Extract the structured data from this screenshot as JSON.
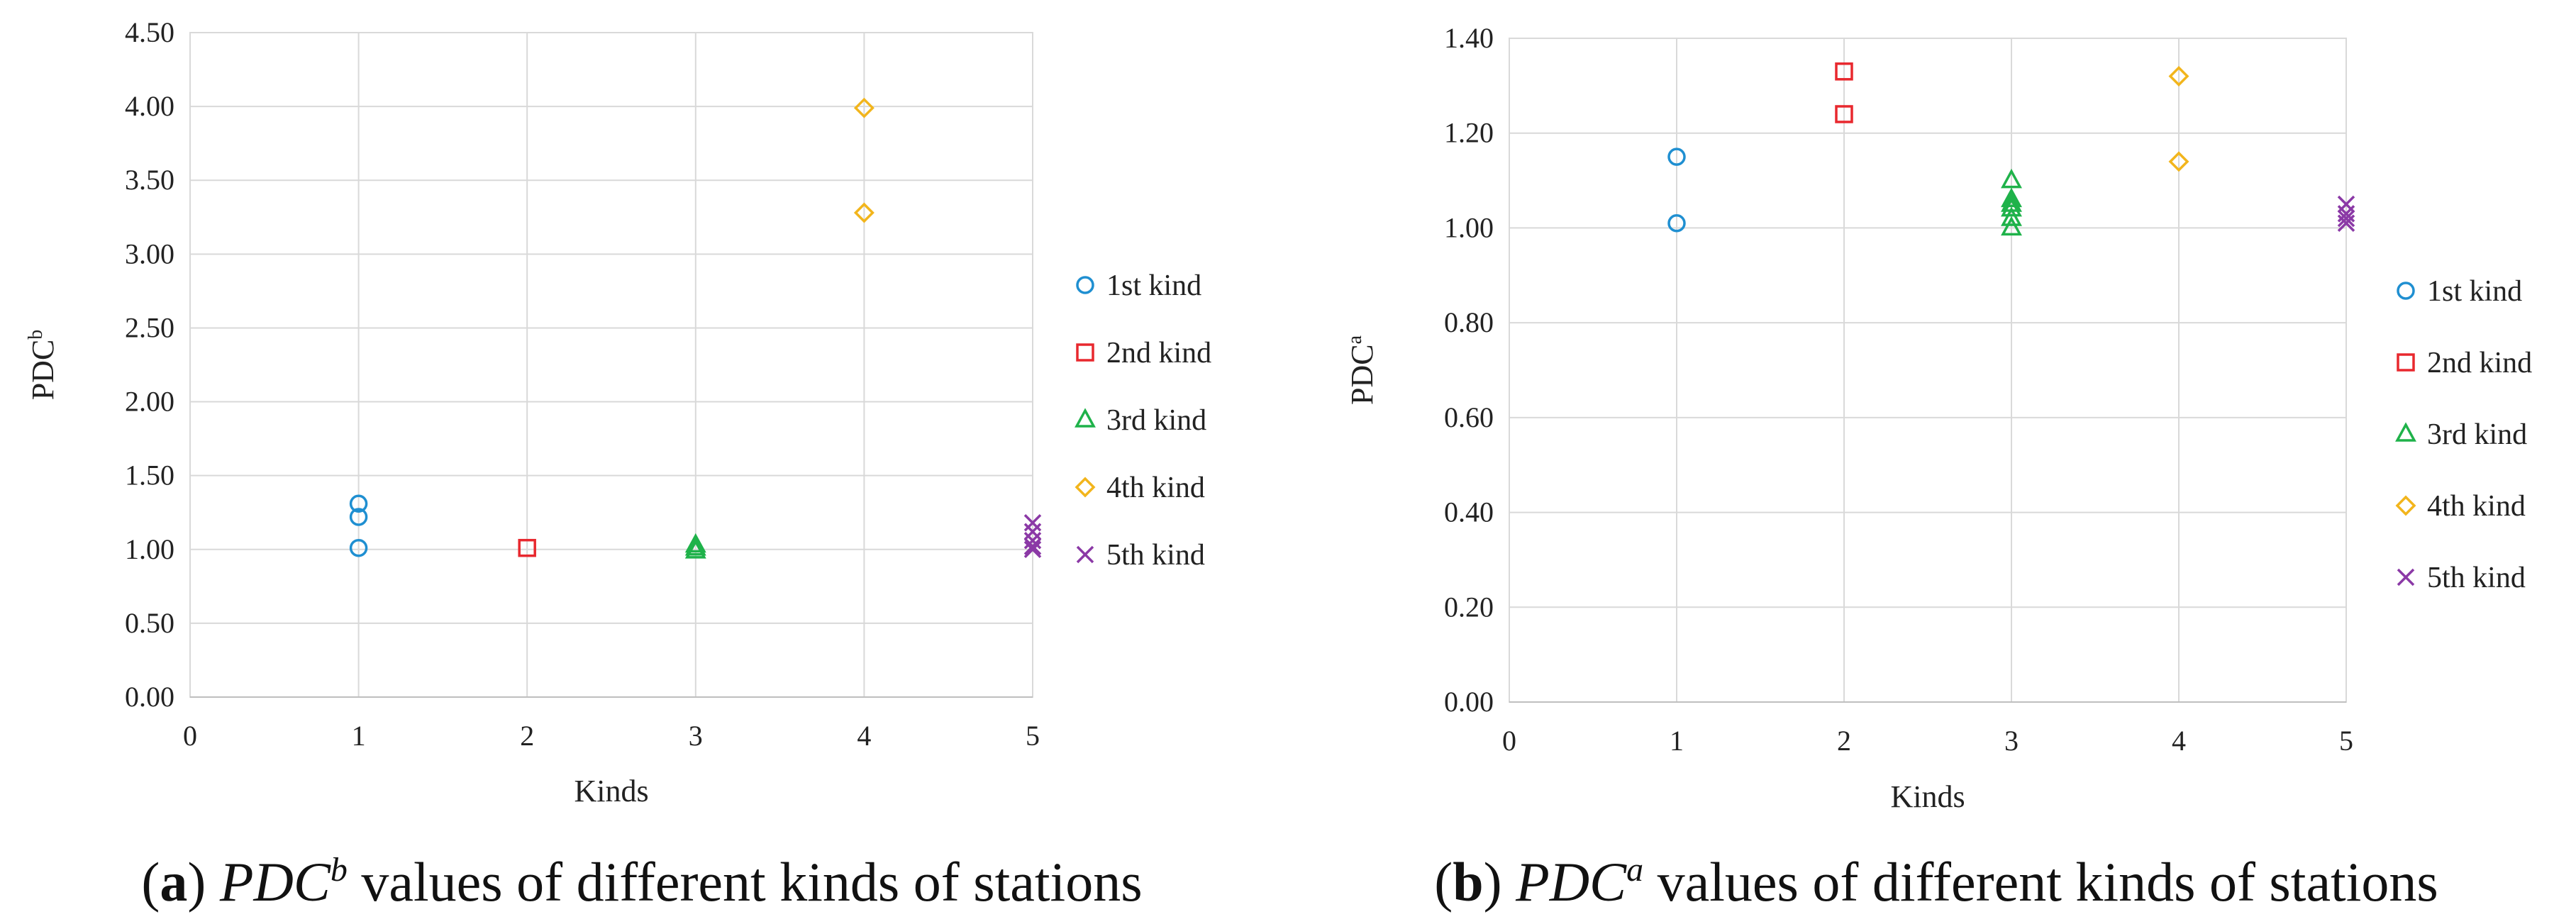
{
  "colors": {
    "first": "#1f8fd1",
    "second": "#e8282e",
    "third": "#1fb24a",
    "fourth": "#f2b51c",
    "fifth": "#8b39a6",
    "grid": "#d9d9d9",
    "text": "#222222"
  },
  "chart_data": [
    {
      "type": "scatter",
      "title": "",
      "xlabel": "Kinds",
      "ylabel": "PDC",
      "ylabel_sup": "b",
      "xlim": [
        0,
        5
      ],
      "ylim": [
        0,
        4.5
      ],
      "xticks": [
        "0",
        "1",
        "2",
        "3",
        "4",
        "5"
      ],
      "yticks": [
        "0.00",
        "0.50",
        "1.00",
        "1.50",
        "2.00",
        "2.50",
        "3.00",
        "3.50",
        "4.00",
        "4.50"
      ],
      "grid": true,
      "legend_position": "right",
      "series": [
        {
          "name": "1st kind",
          "marker": "circle",
          "points": [
            [
              1,
              1.31
            ],
            [
              1,
              1.22
            ],
            [
              1,
              1.01
            ]
          ]
        },
        {
          "name": "2nd kind",
          "marker": "square",
          "points": [
            [
              2,
              1.01
            ]
          ]
        },
        {
          "name": "3rd kind",
          "marker": "triangle",
          "points": [
            [
              3,
              1.03
            ],
            [
              3,
              1.01
            ],
            [
              3,
              0.99
            ]
          ]
        },
        {
          "name": "4th kind",
          "marker": "diamond",
          "points": [
            [
              4,
              3.99
            ],
            [
              4,
              3.28
            ]
          ]
        },
        {
          "name": "5th kind",
          "marker": "cross",
          "points": [
            [
              5,
              1.18
            ],
            [
              5,
              1.12
            ],
            [
              5,
              1.06
            ],
            [
              5,
              1.02
            ],
            [
              5,
              1.0
            ]
          ]
        }
      ],
      "caption": {
        "label": "a",
        "prefix": "PDC",
        "sup": "b",
        "text": "values of different kinds of stations"
      }
    },
    {
      "type": "scatter",
      "title": "",
      "xlabel": "Kinds",
      "ylabel": "PDC",
      "ylabel_sup": "a",
      "xlim": [
        0,
        5
      ],
      "ylim": [
        0,
        1.4
      ],
      "xticks": [
        "0",
        "1",
        "2",
        "3",
        "4",
        "5"
      ],
      "yticks": [
        "0.00",
        "0.20",
        "0.40",
        "0.60",
        "0.80",
        "1.00",
        "1.20",
        "1.40"
      ],
      "grid": true,
      "legend_position": "right",
      "series": [
        {
          "name": "1st kind",
          "marker": "circle",
          "points": [
            [
              1,
              1.15
            ],
            [
              1,
              1.01
            ]
          ]
        },
        {
          "name": "2nd kind",
          "marker": "square",
          "points": [
            [
              2,
              1.33
            ],
            [
              2,
              1.24
            ]
          ]
        },
        {
          "name": "3rd kind",
          "marker": "triangle",
          "points": [
            [
              3,
              1.1
            ],
            [
              3,
              1.06
            ],
            [
              3,
              1.05
            ],
            [
              3,
              1.04
            ],
            [
              3,
              1.02
            ],
            [
              3,
              1.0
            ]
          ]
        },
        {
          "name": "4th kind",
          "marker": "diamond",
          "points": [
            [
              4,
              1.32
            ],
            [
              4,
              1.14
            ]
          ]
        },
        {
          "name": "5th kind",
          "marker": "cross",
          "points": [
            [
              5,
              1.05
            ],
            [
              5,
              1.03
            ],
            [
              5,
              1.02
            ],
            [
              5,
              1.01
            ]
          ]
        }
      ],
      "caption": {
        "label": "b",
        "prefix": "PDC",
        "sup": "a",
        "text": "values of different kinds of stations"
      }
    }
  ]
}
